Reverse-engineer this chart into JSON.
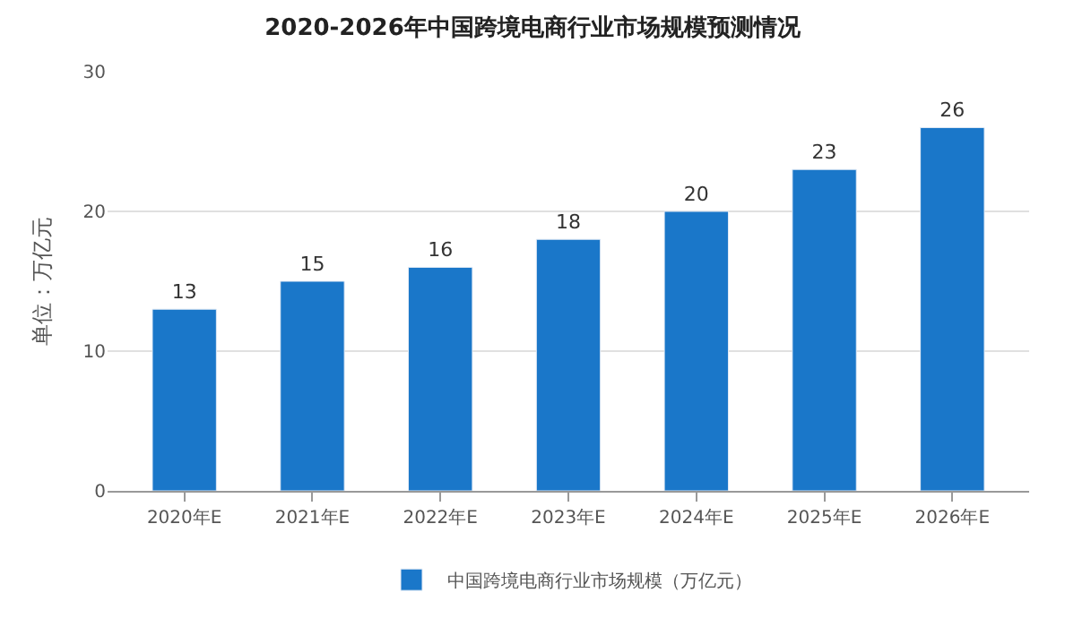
{
  "chart_data": {
    "type": "bar",
    "title": "2020-2026年中国跨境电商行业市场规模预测情况",
    "ylabel": "单位：万亿元",
    "categories": [
      "2020年E",
      "2021年E",
      "2022年E",
      "2023年E",
      "2024年E",
      "2025年E",
      "2026年E"
    ],
    "series": [
      {
        "name": "中国跨境电商行业市场规模（万亿元）",
        "color": "#1a77c9",
        "values": [
          13,
          15,
          16,
          18,
          20,
          23,
          26
        ]
      }
    ],
    "ylim": [
      0,
      30
    ],
    "yticks": [
      0,
      10,
      20,
      30
    ],
    "grid": "y",
    "legend": "bottom",
    "data_labels": true
  }
}
